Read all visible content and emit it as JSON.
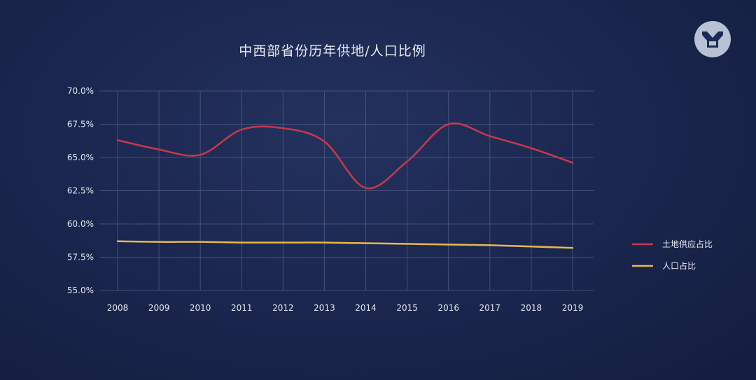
{
  "chart_data": {
    "type": "line",
    "title": "中西部省份历年供地/人口比例",
    "xlabel": "",
    "ylabel": "",
    "categories": [
      "2008",
      "2009",
      "2010",
      "2011",
      "2012",
      "2013",
      "2014",
      "2015",
      "2016",
      "2017",
      "2018",
      "2019"
    ],
    "ylim": [
      55.0,
      70.0
    ],
    "yticks": [
      "55.0%",
      "57.5%",
      "60.0%",
      "62.5%",
      "65.0%",
      "67.5%",
      "70.0%"
    ],
    "grid": true,
    "legend_position": "right",
    "series": [
      {
        "name": "土地供应占比",
        "color": "#c8384a",
        "values": [
          66.3,
          65.6,
          65.2,
          67.1,
          67.2,
          66.2,
          62.7,
          64.7,
          67.5,
          66.6,
          65.7,
          64.6
        ]
      },
      {
        "name": "人口占比",
        "color": "#e8b84a",
        "values": [
          58.7,
          58.65,
          58.65,
          58.6,
          58.6,
          58.6,
          58.55,
          58.5,
          58.45,
          58.4,
          58.3,
          58.2
        ]
      }
    ]
  },
  "logo": {
    "name": "brand-logo",
    "color": "#b9c2d4"
  }
}
